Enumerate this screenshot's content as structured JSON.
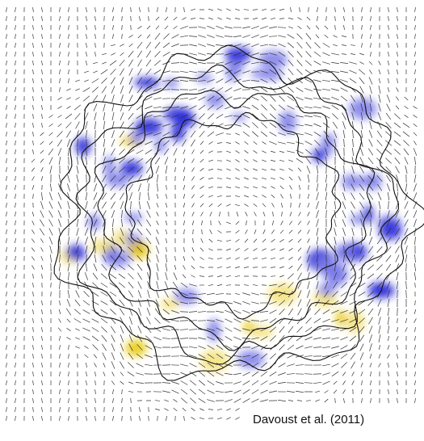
{
  "caption": "Davoust et al. (2011)"
}
